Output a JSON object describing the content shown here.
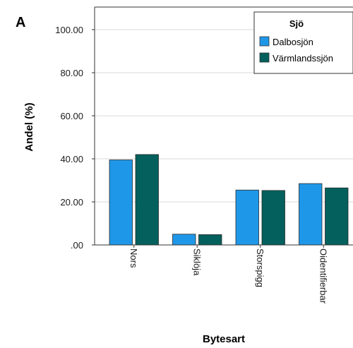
{
  "panel_label": "A",
  "chart_data": {
    "type": "bar",
    "categories": [
      "Nors",
      "Siklöja",
      "Storspigg",
      "Oidentifierbar"
    ],
    "series": [
      {
        "name": "Dalbosjön",
        "color": "#1f97e8",
        "values": [
          39.5,
          5.0,
          25.5,
          28.5
        ]
      },
      {
        "name": "Värmlandssjön",
        "color": "#03605c",
        "values": [
          42.0,
          4.8,
          25.3,
          26.5
        ]
      }
    ],
    "ylabel": "Andel (%)",
    "xlabel": "Bytesart",
    "ylim": [
      0,
      110
    ],
    "yticks": [
      0,
      20,
      40,
      60,
      80,
      100
    ],
    "ytick_labels": [
      ".00",
      "20.00",
      "40.00",
      "60.00",
      "80.00",
      "100.00"
    ],
    "grid": true,
    "legend": {
      "title": "Sjö",
      "placement": "top-right"
    }
  }
}
